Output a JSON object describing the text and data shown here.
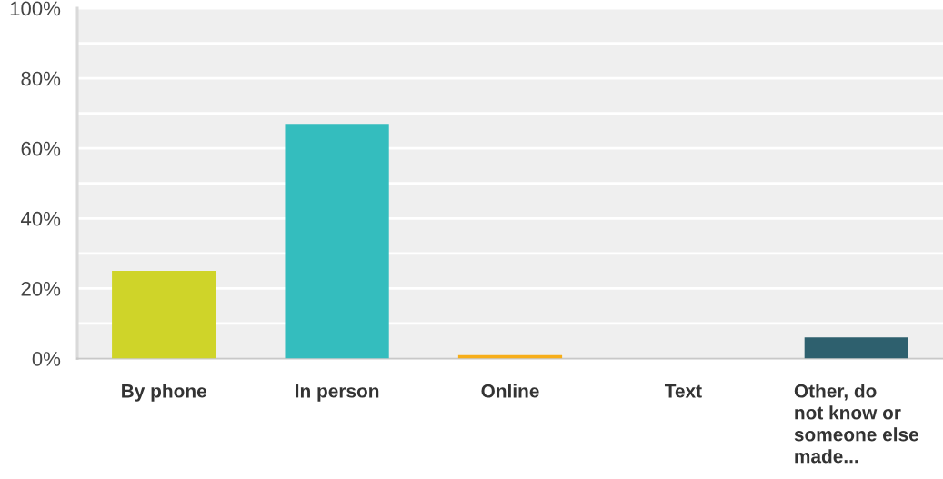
{
  "chart_data": {
    "type": "bar",
    "categories": [
      "By phone",
      "In person",
      "Online",
      "Text",
      "Other, do\nnot know or\nsomeone else\nmade..."
    ],
    "values": [
      25,
      67,
      1,
      0,
      6
    ],
    "colors": [
      "#cfd429",
      "#34bdbe",
      "#f7ae19",
      null,
      "#2e606e"
    ],
    "ylim": [
      0,
      100
    ],
    "yticks": [
      {
        "value": 0,
        "label": "0%"
      },
      {
        "value": 10,
        "label": null
      },
      {
        "value": 20,
        "label": "20%"
      },
      {
        "value": 30,
        "label": null
      },
      {
        "value": 40,
        "label": "40%"
      },
      {
        "value": 50,
        "label": null
      },
      {
        "value": 60,
        "label": "60%"
      },
      {
        "value": 70,
        "label": null
      },
      {
        "value": 80,
        "label": "80%"
      },
      {
        "value": 90,
        "label": null
      },
      {
        "value": 100,
        "label": "100%"
      }
    ],
    "grid": "y"
  }
}
